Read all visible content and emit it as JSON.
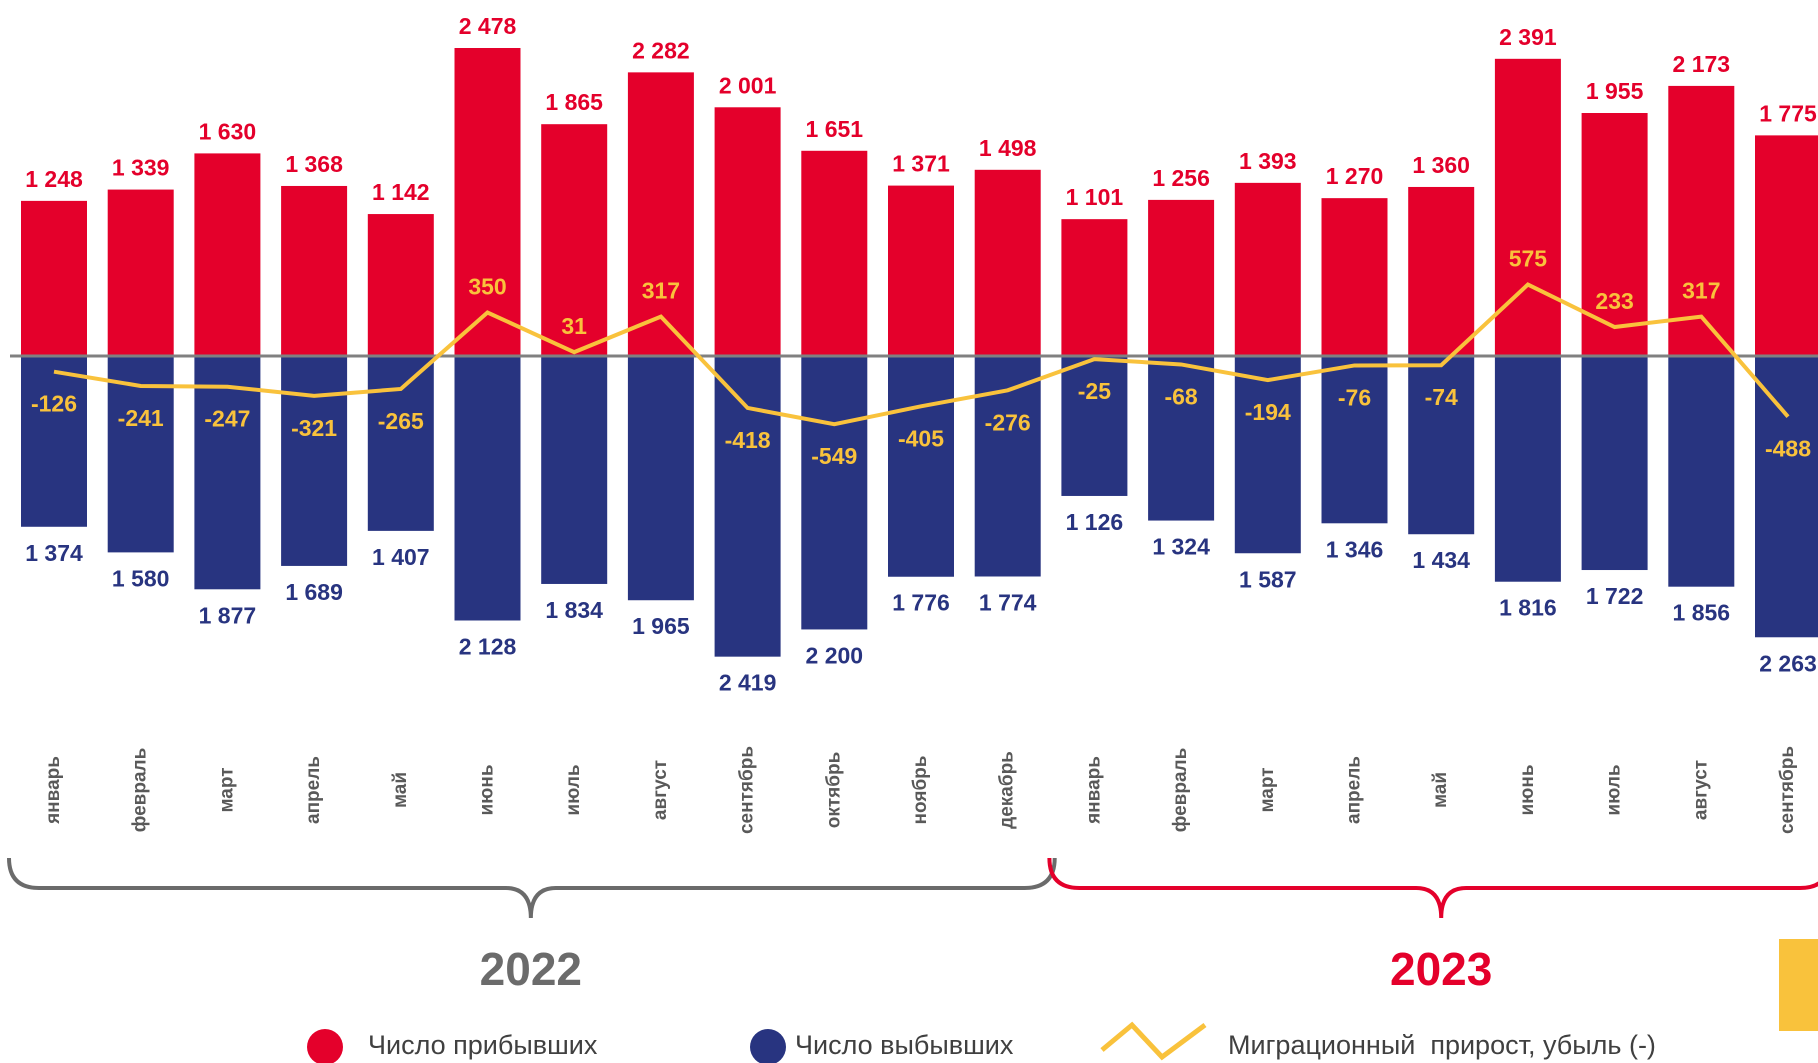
{
  "chart_data": {
    "type": "bar_line",
    "categories": [
      "январь",
      "февраль",
      "март",
      "апрель",
      "май",
      "июнь",
      "июль",
      "август",
      "сентябрь",
      "октябрь",
      "ноябрь",
      "декабрь",
      "январь",
      "февраль",
      "март",
      "апрель",
      "май",
      "июнь",
      "июль",
      "август",
      "сентябрь"
    ],
    "groups": [
      "2022",
      "2023"
    ],
    "series": [
      {
        "name": "Число прибывших",
        "color": "#e4002b",
        "values": [
          1248,
          1339,
          1630,
          1368,
          1142,
          2478,
          1865,
          2282,
          2001,
          1651,
          1371,
          1498,
          1101,
          1256,
          1393,
          1270,
          1360,
          2391,
          1955,
          2173,
          1775
        ],
        "value_labels": [
          "1 248",
          "1 339",
          "1 630",
          "1 368",
          "1 142",
          "2 478",
          "1 865",
          "2 282",
          "2 001",
          "1 651",
          "1 371",
          "1 498",
          "1 101",
          "1 256",
          "1 393",
          "1 270",
          "1 360",
          "2 391",
          "1 955",
          "2 173",
          "1 775"
        ]
      },
      {
        "name": "Число выбывших",
        "color": "#283480",
        "values": [
          1374,
          1580,
          1877,
          1689,
          1407,
          2128,
          1834,
          1965,
          2419,
          2200,
          1776,
          1774,
          1126,
          1324,
          1587,
          1346,
          1434,
          1816,
          1722,
          1856,
          2263
        ],
        "value_labels": [
          "1 374",
          "1 580",
          "1 877",
          "1 689",
          "1 407",
          "2 128",
          "1 834",
          "1 965",
          "2 419",
          "2 200",
          "1 776",
          "1 774",
          "1 126",
          "1 324",
          "1 587",
          "1 346",
          "1 434",
          "1 816",
          "1 722",
          "1 856",
          "2 263"
        ]
      },
      {
        "name": "Миграционный  прирост, убыль (-)",
        "color": "#f9c23c",
        "type": "line",
        "values": [
          -126,
          -241,
          -247,
          -321,
          -265,
          350,
          31,
          317,
          -418,
          -549,
          -405,
          -276,
          -25,
          -68,
          -194,
          -76,
          -74,
          575,
          233,
          317,
          -488
        ]
      }
    ]
  }
}
